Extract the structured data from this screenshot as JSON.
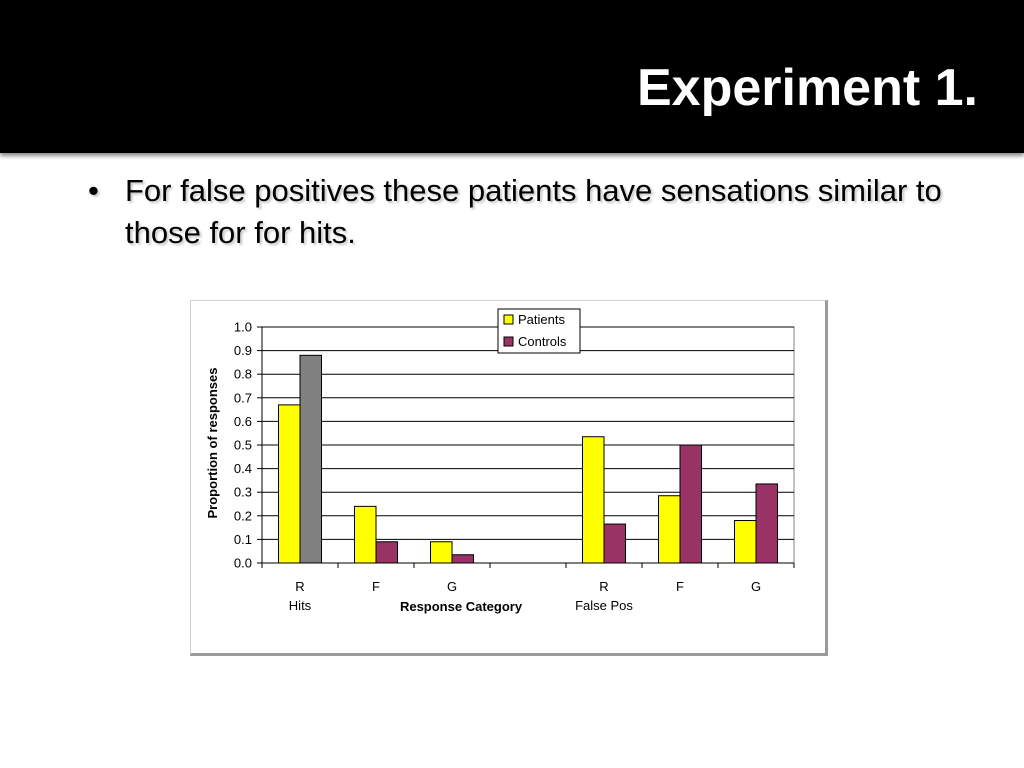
{
  "slide": {
    "title": "Experiment 1.",
    "bullets": [
      "For false positives these patients have sensations similar to those for for hits."
    ]
  },
  "chart_data": {
    "type": "bar",
    "categories": [
      "R",
      "F",
      "G",
      "",
      "R",
      "F",
      "G"
    ],
    "groups": [
      {
        "label": "Hits",
        "under_category_index": 0
      },
      {
        "label": "False Pos",
        "under_category_index": 4
      }
    ],
    "series": [
      {
        "name": "Patients",
        "color": "#FFFF00",
        "values": [
          0.67,
          0.24,
          0.09,
          null,
          0.535,
          0.285,
          0.18
        ]
      },
      {
        "name": "Controls",
        "color": "#993366",
        "values": [
          0.88,
          0.09,
          0.035,
          null,
          0.165,
          0.5,
          0.335
        ]
      }
    ],
    "highlight": {
      "series_index": 1,
      "category_index": 0,
      "color": "#808080"
    },
    "xlabel": "Response Category",
    "ylabel": "Proportion of responses",
    "ylim": [
      0,
      1.0
    ],
    "yticks": [
      "0.0",
      "0.1",
      "0.2",
      "0.3",
      "0.4",
      "0.5",
      "0.6",
      "0.7",
      "0.8",
      "0.9",
      "1.0"
    ],
    "grid": true,
    "legend": "top-center"
  }
}
